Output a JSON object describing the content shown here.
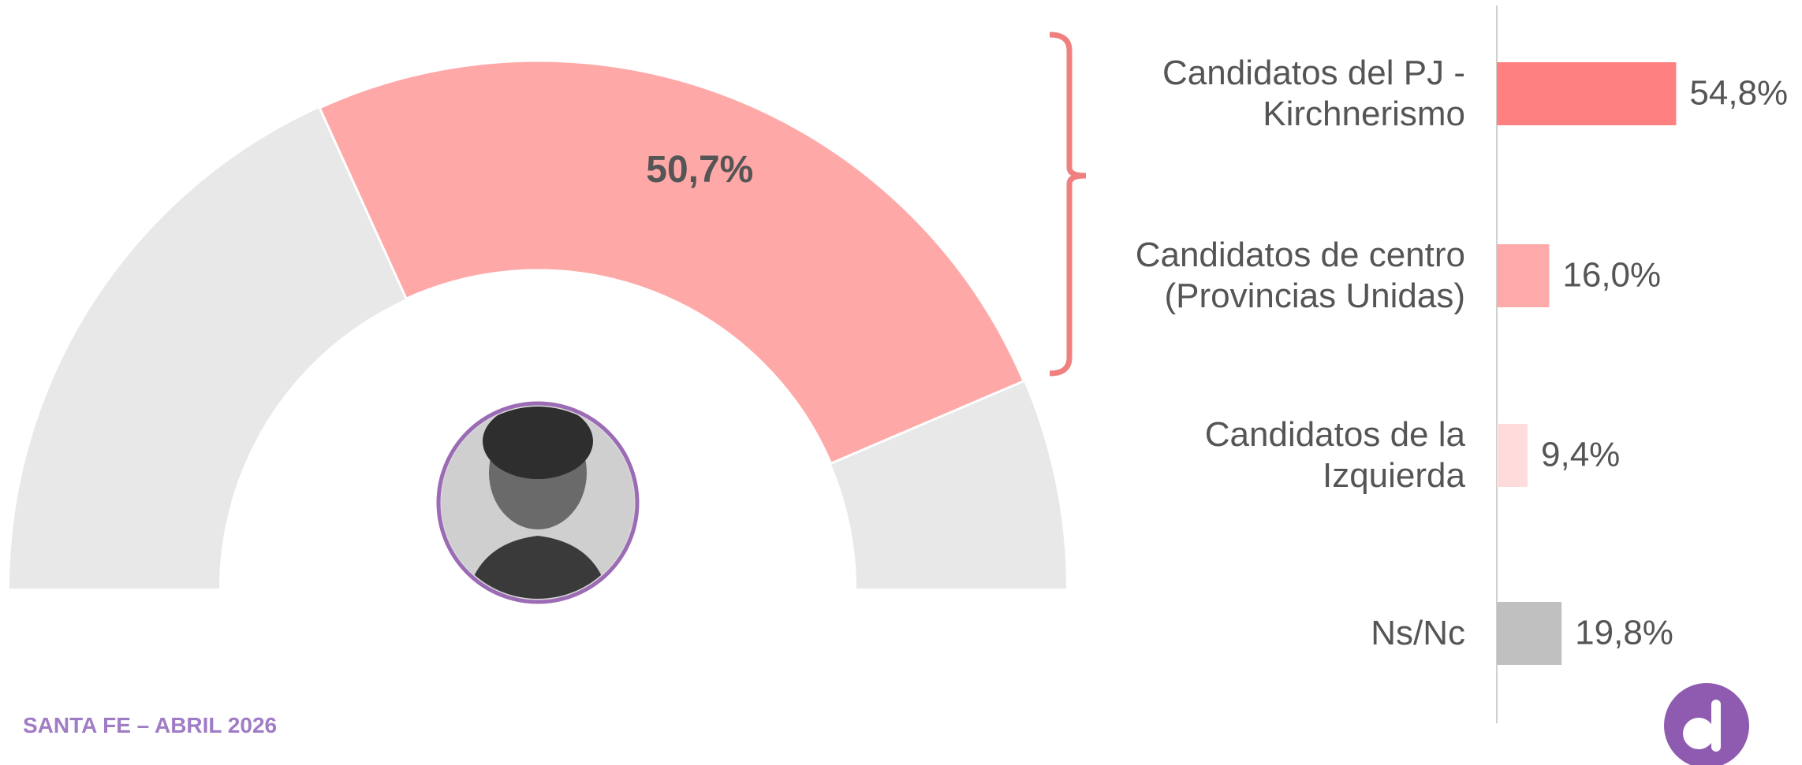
{
  "chart_data": [
    {
      "type": "gauge",
      "values": [
        50.7
      ],
      "value_labels": [
        "50,7%"
      ],
      "range": [
        0,
        100
      ],
      "color": "#ffa8a8",
      "track_color": "#e8e8e8"
    },
    {
      "type": "bar",
      "orientation": "horizontal",
      "categories": [
        "Candidatos del PJ - Kirchnerismo",
        "Candidatos de centro (Provincias Unidas)",
        "Candidatos de la Izquierda",
        "Ns/Nc"
      ],
      "values": [
        54.8,
        16.0,
        9.4,
        19.8
      ],
      "value_labels": [
        "54,8%",
        "16,0%",
        "9,4%",
        "19,8%"
      ],
      "colors": [
        "#ff8080",
        "#ffaaaa",
        "#ffdcdc",
        "#c0c0c0"
      ],
      "xlim": [
        0,
        100
      ]
    }
  ],
  "footer": "SANTA FE – ABRIL 2026"
}
